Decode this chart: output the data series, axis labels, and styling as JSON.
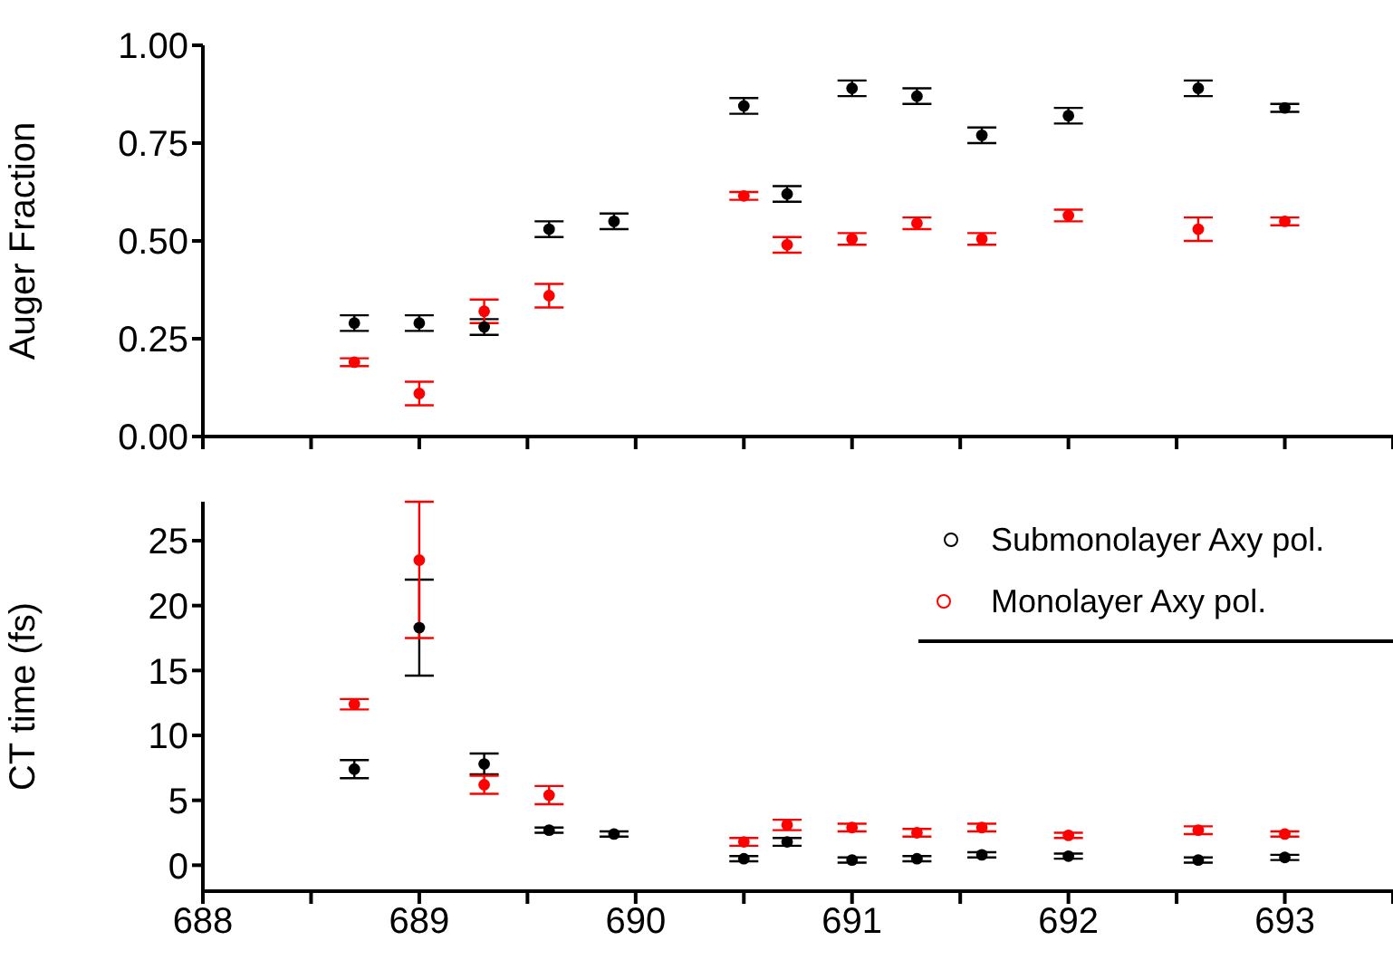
{
  "chart_data": [
    {
      "type": "scatter",
      "ylabel": "Auger Fraction",
      "xlim": [
        688,
        693.5
      ],
      "xticks": [
        {
          "value": 688,
          "label": null
        },
        {
          "value": 688.5,
          "label": null
        },
        {
          "value": 689,
          "label": null
        },
        {
          "value": 689.5,
          "label": null
        },
        {
          "value": 690,
          "label": null
        },
        {
          "value": 690.5,
          "label": null
        },
        {
          "value": 691,
          "label": null
        },
        {
          "value": 691.5,
          "label": null
        },
        {
          "value": 692,
          "label": null
        },
        {
          "value": 692.5,
          "label": null
        },
        {
          "value": 693,
          "label": null
        },
        {
          "value": 693.5,
          "label": null
        }
      ],
      "ylim": [
        0,
        1
      ],
      "yticks": [
        {
          "value": 0,
          "label": "0.00"
        },
        {
          "value": 0.25,
          "label": "0.25"
        },
        {
          "value": 0.5,
          "label": "0.50"
        },
        {
          "value": 0.75,
          "label": "0.75"
        },
        {
          "value": 1,
          "label": "1.00"
        }
      ],
      "tick_labels": "y",
      "marker": "circle",
      "series": [
        {
          "color": "#000000",
          "x": [
            688.7,
            689.0,
            689.3,
            689.6,
            689.9,
            690.5,
            690.7,
            691.0,
            691.3,
            691.6,
            692.0,
            692.6,
            693.0
          ],
          "values": [
            0.29,
            0.29,
            0.28,
            0.53,
            0.55,
            0.845,
            0.62,
            0.89,
            0.87,
            0.77,
            0.82,
            0.89,
            0.84
          ],
          "errors": [
            0.02,
            0.02,
            0.02,
            0.02,
            0.02,
            0.02,
            0.02,
            0.02,
            0.02,
            0.02,
            0.02,
            0.02,
            0.01
          ]
        },
        {
          "color": "#ff0000",
          "x": [
            688.7,
            689.0,
            689.3,
            689.6,
            690.5,
            690.7,
            691.0,
            691.3,
            691.6,
            692.0,
            692.6,
            693.0
          ],
          "values": [
            0.19,
            0.11,
            0.32,
            0.36,
            0.615,
            0.49,
            0.505,
            0.545,
            0.505,
            0.565,
            0.53,
            0.55
          ],
          "errors": [
            0.01,
            0.03,
            0.03,
            0.03,
            0.01,
            0.02,
            0.015,
            0.015,
            0.015,
            0.015,
            0.03,
            0.01
          ]
        }
      ]
    },
    {
      "type": "scatter",
      "ylabel": "CT time (fs)",
      "xlim": [
        688,
        693.5
      ],
      "xticks": [
        688,
        {
          "value": 688.5,
          "label": null
        },
        689,
        {
          "value": 689.5,
          "label": null
        },
        690,
        {
          "value": 690.5,
          "label": null
        },
        691,
        {
          "value": 691.5,
          "label": null
        },
        692,
        {
          "value": 692.5,
          "label": null
        },
        693,
        {
          "value": 693.5,
          "label": null
        }
      ],
      "ylim": [
        -2,
        28
      ],
      "yticks": [
        0,
        5,
        10,
        15,
        20,
        25
      ],
      "marker": "circle",
      "legend": "top right",
      "series": [
        {
          "name": "Submonolayer Axy pol.",
          "color": "#000000",
          "x": [
            688.7,
            689.0,
            689.3,
            689.6,
            689.9,
            690.5,
            690.7,
            691.0,
            691.3,
            691.6,
            692.0,
            692.6,
            693.0
          ],
          "values": [
            7.4,
            18.3,
            7.8,
            2.7,
            2.4,
            0.5,
            1.8,
            0.4,
            0.5,
            0.8,
            0.7,
            0.4,
            0.6
          ],
          "errors": [
            0.7,
            3.7,
            0.8,
            0.2,
            0.2,
            0.2,
            0.3,
            0.2,
            0.2,
            0.2,
            0.2,
            0.2,
            0.2
          ]
        },
        {
          "name": "Monolayer Axy pol.",
          "color": "#ff0000",
          "x": [
            688.7,
            689.0,
            689.3,
            689.6,
            690.5,
            690.7,
            691.0,
            691.3,
            691.6,
            692.0,
            692.6,
            693.0
          ],
          "values": [
            12.4,
            23.5,
            6.2,
            5.4,
            1.8,
            3.1,
            2.9,
            2.5,
            2.9,
            2.3,
            2.7,
            2.4
          ],
          "errors": [
            0.4,
            [
              17.5,
              28
            ],
            0.7,
            0.7,
            0.3,
            0.4,
            0.3,
            0.3,
            0.3,
            0.2,
            0.3,
            0.2
          ]
        }
      ]
    }
  ]
}
